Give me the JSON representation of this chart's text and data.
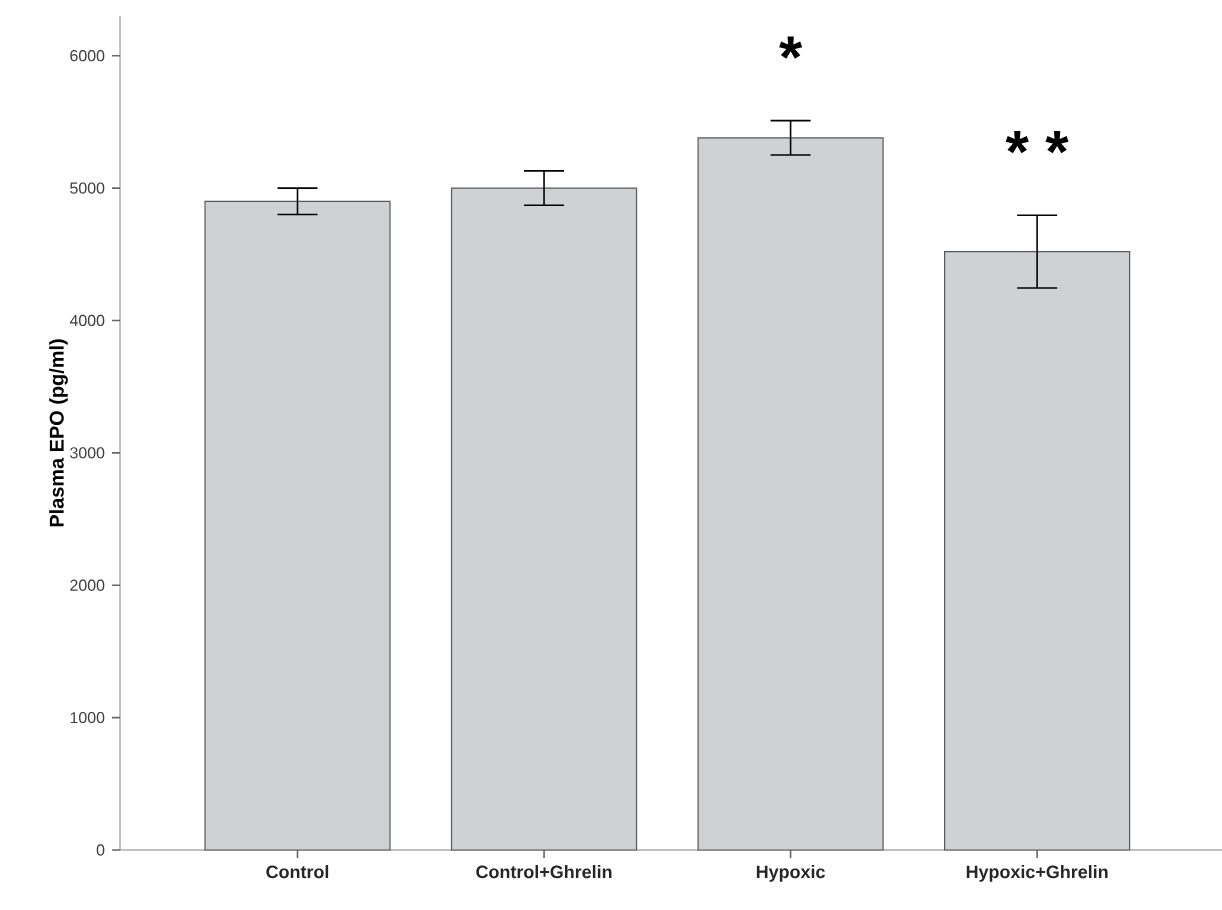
{
  "chart_data": {
    "type": "bar",
    "ylabel": "Plasma EPO (pg/ml)",
    "categories": [
      "Control",
      "Control+Ghrelin",
      "Hypoxic",
      "Hypoxic+Ghrelin"
    ],
    "values": [
      4900,
      5000,
      5380,
      4520
    ],
    "errors": [
      100,
      130,
      130,
      275
    ],
    "color": "#d0d1d3",
    "ylim": [
      0,
      6300
    ],
    "yticks": [
      0,
      1000,
      2000,
      3000,
      4000,
      5000,
      6000
    ],
    "grid": false,
    "annotations": [
      "*",
      "* *"
    ]
  }
}
